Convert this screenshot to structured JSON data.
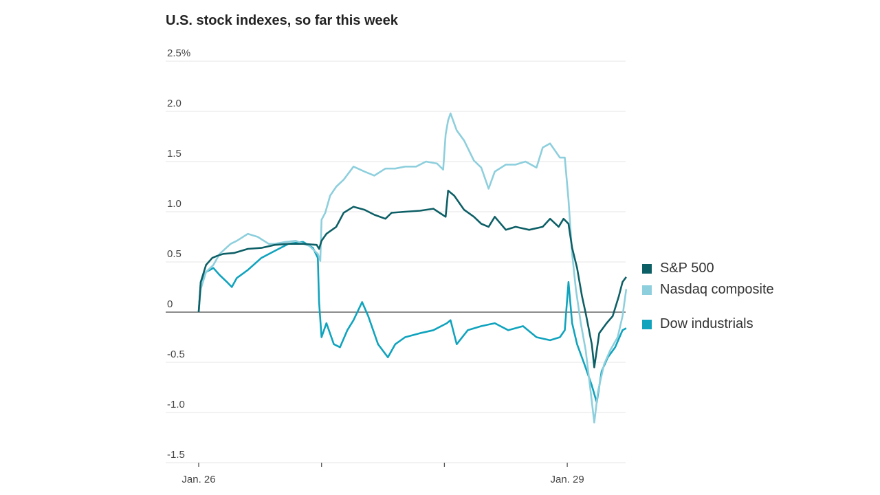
{
  "chart_data": {
    "type": "line",
    "title": "U.S. stock indexes, so far this week",
    "xlabel": "",
    "ylabel": "",
    "xlim": [
      0,
      3.48
    ],
    "ylim": [
      -1.5,
      2.5
    ],
    "y_ticks": [
      2.5,
      2.0,
      1.5,
      1.0,
      0.5,
      0,
      -0.5,
      -1.0,
      -1.5
    ],
    "y_tick_labels": [
      "2.5%",
      "2.0",
      "1.5",
      "1.0",
      "0.5",
      "0",
      "-0.5",
      "-1.0",
      "-1.5"
    ],
    "x_ticks": [
      0,
      1,
      2,
      3
    ],
    "x_tick_labels": [
      "Jan. 26",
      "",
      "",
      "Jan. 29"
    ],
    "x_unit": "trading days since open Jan. 26",
    "grid": true,
    "legend_position": "right",
    "series": [
      {
        "name": "S&P 500",
        "color": "#0d5f66",
        "points": [
          [
            0,
            0
          ],
          [
            0.017,
            0.3
          ],
          [
            0.06,
            0.47
          ],
          [
            0.11,
            0.54
          ],
          [
            0.15,
            0.56
          ],
          [
            0.2,
            0.58
          ],
          [
            0.29,
            0.59
          ],
          [
            0.4,
            0.63
          ],
          [
            0.51,
            0.64
          ],
          [
            0.62,
            0.67
          ],
          [
            0.73,
            0.68
          ],
          [
            0.85,
            0.68
          ],
          [
            0.96,
            0.67
          ],
          [
            0.98,
            0.63
          ],
          [
            1.0,
            0.71
          ],
          [
            1.04,
            0.78
          ],
          [
            1.12,
            0.85
          ],
          [
            1.18,
            0.99
          ],
          [
            1.26,
            1.05
          ],
          [
            1.35,
            1.02
          ],
          [
            1.43,
            0.97
          ],
          [
            1.52,
            0.93
          ],
          [
            1.57,
            0.99
          ],
          [
            1.68,
            1.0
          ],
          [
            1.8,
            1.01
          ],
          [
            1.91,
            1.03
          ],
          [
            1.96,
            0.99
          ],
          [
            2.01,
            0.95
          ],
          [
            2.03,
            1.21
          ],
          [
            2.08,
            1.16
          ],
          [
            2.16,
            1.02
          ],
          [
            2.24,
            0.95
          ],
          [
            2.3,
            0.88
          ],
          [
            2.36,
            0.85
          ],
          [
            2.41,
            0.95
          ],
          [
            2.5,
            0.82
          ],
          [
            2.58,
            0.85
          ],
          [
            2.69,
            0.82
          ],
          [
            2.8,
            0.85
          ],
          [
            2.86,
            0.93
          ],
          [
            2.93,
            0.85
          ],
          [
            2.97,
            0.93
          ],
          [
            3.01,
            0.88
          ],
          [
            3.04,
            0.64
          ],
          [
            3.08,
            0.44
          ],
          [
            3.12,
            0.16
          ],
          [
            3.15,
            -0.01
          ],
          [
            3.2,
            -0.32
          ],
          [
            3.22,
            -0.55
          ],
          [
            3.26,
            -0.21
          ],
          [
            3.32,
            -0.11
          ],
          [
            3.37,
            -0.04
          ],
          [
            3.42,
            0.16
          ],
          [
            3.45,
            0.3
          ],
          [
            3.48,
            0.35
          ]
        ]
      },
      {
        "name": "Nasdaq composite",
        "color": "#8ecfdd",
        "points": [
          [
            0,
            0
          ],
          [
            0.017,
            0.23
          ],
          [
            0.06,
            0.4
          ],
          [
            0.12,
            0.47
          ],
          [
            0.17,
            0.58
          ],
          [
            0.26,
            0.68
          ],
          [
            0.31,
            0.71
          ],
          [
            0.4,
            0.78
          ],
          [
            0.48,
            0.75
          ],
          [
            0.57,
            0.68
          ],
          [
            0.62,
            0.68
          ],
          [
            0.71,
            0.7
          ],
          [
            0.79,
            0.71
          ],
          [
            0.9,
            0.66
          ],
          [
            0.97,
            0.58
          ],
          [
            0.99,
            0.51
          ],
          [
            1.0,
            0.92
          ],
          [
            1.03,
            0.99
          ],
          [
            1.07,
            1.16
          ],
          [
            1.12,
            1.25
          ],
          [
            1.18,
            1.32
          ],
          [
            1.26,
            1.45
          ],
          [
            1.35,
            1.4
          ],
          [
            1.43,
            1.36
          ],
          [
            1.52,
            1.43
          ],
          [
            1.6,
            1.43
          ],
          [
            1.68,
            1.45
          ],
          [
            1.77,
            1.45
          ],
          [
            1.85,
            1.5
          ],
          [
            1.94,
            1.48
          ],
          [
            1.99,
            1.42
          ],
          [
            2.01,
            1.77
          ],
          [
            2.03,
            1.91
          ],
          [
            2.05,
            1.98
          ],
          [
            2.1,
            1.81
          ],
          [
            2.16,
            1.71
          ],
          [
            2.24,
            1.51
          ],
          [
            2.3,
            1.44
          ],
          [
            2.36,
            1.23
          ],
          [
            2.41,
            1.4
          ],
          [
            2.5,
            1.47
          ],
          [
            2.58,
            1.47
          ],
          [
            2.66,
            1.5
          ],
          [
            2.75,
            1.44
          ],
          [
            2.8,
            1.64
          ],
          [
            2.86,
            1.68
          ],
          [
            2.94,
            1.54
          ],
          [
            2.98,
            1.54
          ],
          [
            3.01,
            1.12
          ],
          [
            3.04,
            0.58
          ],
          [
            3.07,
            0.23
          ],
          [
            3.11,
            -0.11
          ],
          [
            3.15,
            -0.38
          ],
          [
            3.19,
            -0.79
          ],
          [
            3.22,
            -1.1
          ],
          [
            3.25,
            -0.79
          ],
          [
            3.3,
            -0.52
          ],
          [
            3.35,
            -0.38
          ],
          [
            3.41,
            -0.25
          ],
          [
            3.45,
            -0.04
          ],
          [
            3.48,
            0.23
          ]
        ]
      },
      {
        "name": "Dow industrials",
        "color": "#10a3bd",
        "points": [
          [
            0,
            0
          ],
          [
            0.017,
            0.3
          ],
          [
            0.06,
            0.4
          ],
          [
            0.12,
            0.44
          ],
          [
            0.17,
            0.37
          ],
          [
            0.23,
            0.3
          ],
          [
            0.27,
            0.25
          ],
          [
            0.31,
            0.34
          ],
          [
            0.4,
            0.42
          ],
          [
            0.51,
            0.54
          ],
          [
            0.62,
            0.61
          ],
          [
            0.73,
            0.68
          ],
          [
            0.85,
            0.7
          ],
          [
            0.93,
            0.64
          ],
          [
            0.97,
            0.54
          ],
          [
            0.98,
            0.1
          ],
          [
            1.0,
            -0.25
          ],
          [
            1.04,
            -0.11
          ],
          [
            1.1,
            -0.32
          ],
          [
            1.15,
            -0.35
          ],
          [
            1.21,
            -0.18
          ],
          [
            1.26,
            -0.08
          ],
          [
            1.33,
            0.1
          ],
          [
            1.38,
            -0.04
          ],
          [
            1.46,
            -0.32
          ],
          [
            1.54,
            -0.45
          ],
          [
            1.6,
            -0.32
          ],
          [
            1.68,
            -0.25
          ],
          [
            1.8,
            -0.21
          ],
          [
            1.91,
            -0.18
          ],
          [
            2.02,
            -0.11
          ],
          [
            2.05,
            -0.08
          ],
          [
            2.1,
            -0.32
          ],
          [
            2.19,
            -0.18
          ],
          [
            2.3,
            -0.14
          ],
          [
            2.41,
            -0.11
          ],
          [
            2.52,
            -0.18
          ],
          [
            2.64,
            -0.14
          ],
          [
            2.75,
            -0.25
          ],
          [
            2.86,
            -0.28
          ],
          [
            2.94,
            -0.25
          ],
          [
            2.98,
            -0.18
          ],
          [
            3.01,
            0.3
          ],
          [
            3.04,
            -0.11
          ],
          [
            3.08,
            -0.32
          ],
          [
            3.14,
            -0.52
          ],
          [
            3.2,
            -0.73
          ],
          [
            3.24,
            -0.9
          ],
          [
            3.28,
            -0.59
          ],
          [
            3.33,
            -0.45
          ],
          [
            3.39,
            -0.35
          ],
          [
            3.45,
            -0.18
          ],
          [
            3.48,
            -0.16
          ]
        ]
      }
    ]
  }
}
